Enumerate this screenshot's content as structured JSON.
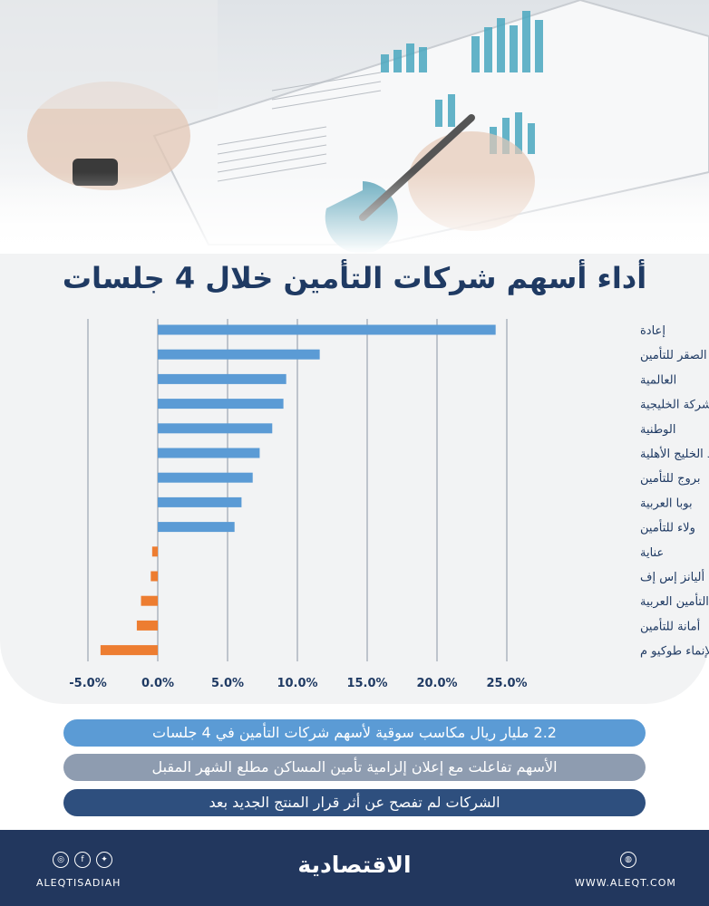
{
  "title": "أداء أسهم شركات التأمين خلال 4 جلسات",
  "chart_data": {
    "type": "bar",
    "orientation": "horizontal",
    "title": "أداء أسهم شركات التأمين خلال 4 جلسات",
    "categories": [
      "إعادة",
      "الصقر للتأمين",
      "العالمية",
      "الشركة الخليجية",
      "الوطنية",
      "اتحاد الخليج الأهلية",
      "بروج للتأمين",
      "بوبا العربية",
      "ولاء للتأمين",
      "عناية",
      "أليانز إس إف",
      "التأمين العربية",
      "أمانة للتأمين",
      "الإنماء طوكيو م"
    ],
    "values": [
      24.2,
      11.6,
      9.2,
      9.0,
      8.2,
      7.3,
      6.8,
      6.0,
      5.5,
      -0.4,
      -0.5,
      -1.2,
      -1.5,
      -4.1
    ],
    "xlim": [
      -5,
      25
    ],
    "xticks": [
      25,
      20,
      15,
      10,
      5,
      0,
      -5
    ],
    "xtick_labels": [
      "25.0%",
      "20.0%",
      "15.0%",
      "10.0%",
      "5.0%",
      "0.0%",
      "-5.0%"
    ],
    "colors": {
      "positive": "#5b9bd5",
      "negative": "#ed7d31"
    },
    "grid": true
  },
  "info": [
    "2.2 مليار ريال مكاسب سوقية لأسهم شركات التأمين في 4 جلسات",
    "الأسهم تفاعلت مع إعلان  إلزامية تأمين المساكن مطلع الشهر المقبل",
    "الشركات لم تفصح عن أثر قرار المنتج الجديد بعد"
  ],
  "footer": {
    "logo": "الاقتصادية",
    "handle": "ALEQTISADIAH",
    "website": "WWW.ALEQT.COM",
    "social_icons": [
      "instagram-icon",
      "facebook-icon",
      "twitter-icon"
    ],
    "web_icon": "globe-icon"
  }
}
